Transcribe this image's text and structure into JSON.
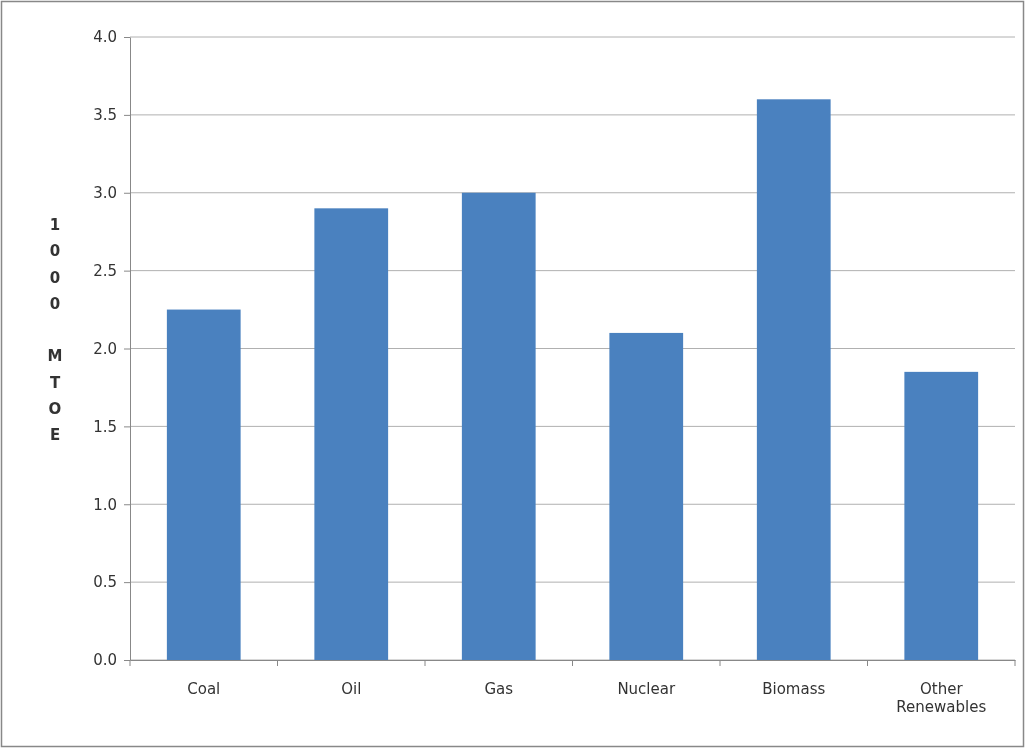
{
  "chart_data": {
    "type": "bar",
    "ylabel": "1000 MTOE",
    "categories": [
      "Coal",
      "Oil",
      "Gas",
      "Nuclear",
      "Biomass",
      "Other Renewables"
    ],
    "values": [
      2.25,
      2.9,
      3.0,
      2.1,
      3.6,
      1.85
    ],
    "color": "#4a81bf",
    "ylim": [
      0,
      4
    ],
    "yticks": [
      {
        "value": 0,
        "label": "0.0"
      },
      {
        "value": 0.5,
        "label": "0.5"
      },
      {
        "value": 1,
        "label": "1.0"
      },
      {
        "value": 1.5,
        "label": "1.5"
      },
      {
        "value": 2,
        "label": "2.0"
      },
      {
        "value": 2.5,
        "label": "2.5"
      },
      {
        "value": 3,
        "label": "3.0"
      },
      {
        "value": 3.5,
        "label": "3.5"
      },
      {
        "value": 4,
        "label": "4.0"
      }
    ],
    "grid": "y"
  }
}
